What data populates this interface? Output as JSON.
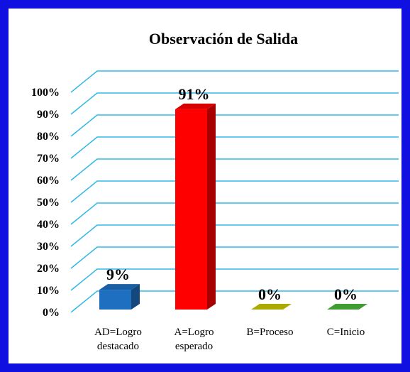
{
  "chart_data": {
    "type": "bar",
    "title": "Observación de Salida",
    "categories": [
      "AD=Logro destacado",
      "A=Logro esperado",
      "B=Proceso",
      "C=Inicio"
    ],
    "values": [
      9,
      91,
      0,
      0
    ],
    "value_labels": [
      "9%",
      "91%",
      "0%",
      "0%"
    ],
    "colors": [
      "#1f6fc0",
      "#ff0000",
      "#c8c800",
      "#4cb83c"
    ],
    "ylim": [
      0,
      100
    ],
    "yticks": [
      {
        "value": 0,
        "label": "0%"
      },
      {
        "value": 10,
        "label": "10%"
      },
      {
        "value": 20,
        "label": "20%"
      },
      {
        "value": 30,
        "label": "30%"
      },
      {
        "value": 40,
        "label": "40%"
      },
      {
        "value": 50,
        "label": "50%"
      },
      {
        "value": 60,
        "label": "60%"
      },
      {
        "value": 70,
        "label": "70%"
      },
      {
        "value": 80,
        "label": "80%"
      },
      {
        "value": 90,
        "label": "90%"
      },
      {
        "value": 100,
        "label": "100%"
      }
    ],
    "grid": true
  }
}
